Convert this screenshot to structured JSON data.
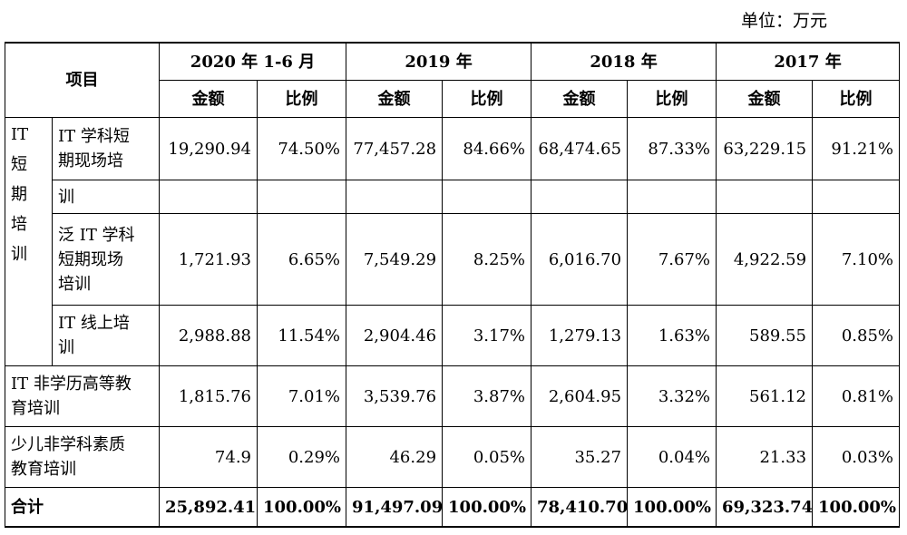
{
  "unit_label": "单位：万元",
  "header": {
    "item": "项目",
    "periods": [
      "2020 年 1-6 月",
      "2019 年",
      "2018 年",
      "2017 年"
    ],
    "amount": "金额",
    "ratio": "比例"
  },
  "groups": {
    "it_short": [
      "IT",
      "短",
      "期",
      "培",
      "训"
    ]
  },
  "rows": {
    "r1": {
      "label": [
        "IT 学科短",
        "期现场培"
      ],
      "values": [
        "19,290.94",
        "74.50%",
        "77,457.28",
        "84.66%",
        "68,474.65",
        "87.33%",
        "63,229.15",
        "91.21%"
      ]
    },
    "r1b": {
      "label": "训"
    },
    "r2": {
      "label": [
        "泛 IT 学科",
        "短期现场",
        "培训"
      ],
      "values": [
        "1,721.93",
        "6.65%",
        "7,549.29",
        "8.25%",
        "6,016.70",
        "7.67%",
        "4,922.59",
        "7.10%"
      ]
    },
    "r3": {
      "label": [
        "IT 线上培",
        "训"
      ],
      "values": [
        "2,988.88",
        "11.54%",
        "2,904.46",
        "3.17%",
        "1,279.13",
        "1.63%",
        "589.55",
        "0.85%"
      ]
    },
    "r4": {
      "label": [
        "IT 非学历高等教",
        "育培训"
      ],
      "values": [
        "1,815.76",
        "7.01%",
        "3,539.76",
        "3.87%",
        "2,604.95",
        "3.32%",
        "561.12",
        "0.81%"
      ]
    },
    "r5": {
      "label": [
        "少儿非学科素质",
        "教育培训"
      ],
      "values": [
        "74.9",
        "0.29%",
        "46.29",
        "0.05%",
        "35.27",
        "0.04%",
        "21.33",
        "0.03%"
      ]
    },
    "total": {
      "label": "合计",
      "values": [
        "25,892.41",
        "100.00%",
        "91,497.09",
        "100.00%",
        "78,410.70",
        "100.00%",
        "69,323.74",
        "100.00%"
      ]
    }
  }
}
